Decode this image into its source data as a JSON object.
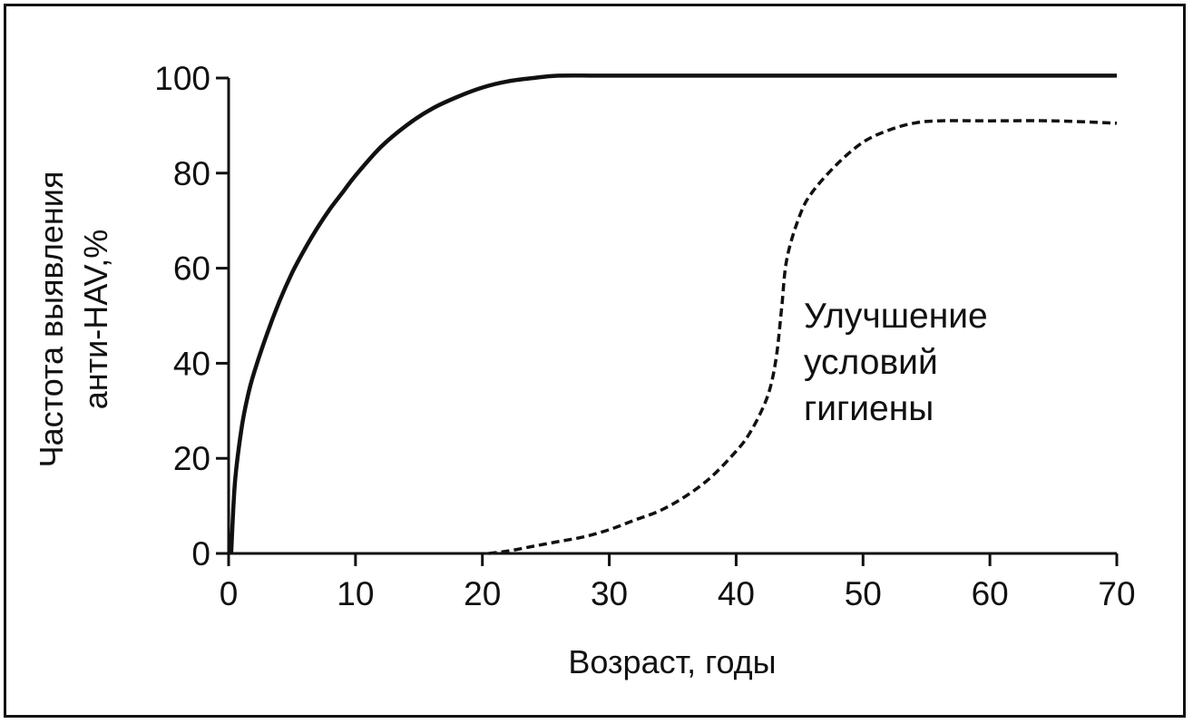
{
  "chart_data": {
    "type": "line",
    "title": "",
    "xlabel": "Возраст,  годы",
    "ylabel_lines": [
      "Частота выявления",
      "анти-HAV,%"
    ],
    "xlim": [
      0,
      70
    ],
    "ylim": [
      0,
      100
    ],
    "x_ticks": [
      0,
      10,
      20,
      30,
      40,
      50,
      60,
      70
    ],
    "y_ticks": [
      0,
      20,
      40,
      60,
      80,
      100
    ],
    "grid": false,
    "legend": "none",
    "annotation_lines": [
      "Улучшение",
      "условий",
      "гигиены"
    ],
    "series": [
      {
        "style": "solid",
        "color": "#111111",
        "x": [
          0.2,
          0.5,
          1,
          1.5,
          2,
          3,
          4,
          5,
          6,
          7,
          8,
          9,
          10,
          12,
          14,
          16,
          18,
          20,
          22,
          24,
          26,
          30,
          40,
          50,
          60,
          70
        ],
        "y": [
          0,
          15,
          26,
          33,
          38,
          46,
          53,
          59,
          64,
          68.5,
          72.5,
          76,
          79.5,
          85.5,
          90,
          93.5,
          96,
          98,
          99.3,
          100,
          100.5,
          100.5,
          100.5,
          100.5,
          100.5,
          100.5
        ]
      },
      {
        "style": "dashed",
        "color": "#111111",
        "x": [
          20.5,
          22,
          24,
          26,
          28,
          30,
          32,
          34,
          36,
          38,
          40,
          41,
          42,
          42.7,
          43.2,
          43.6,
          44,
          45,
          46,
          48,
          50,
          52,
          54,
          56,
          60,
          65,
          70
        ],
        "y": [
          0,
          0.5,
          1.5,
          2.5,
          3.5,
          5,
          7,
          9,
          12,
          16,
          21.5,
          25,
          30,
          35,
          42,
          52,
          62,
          71,
          76,
          82,
          86.5,
          89,
          90.5,
          91,
          91,
          91,
          90.5
        ]
      }
    ]
  }
}
